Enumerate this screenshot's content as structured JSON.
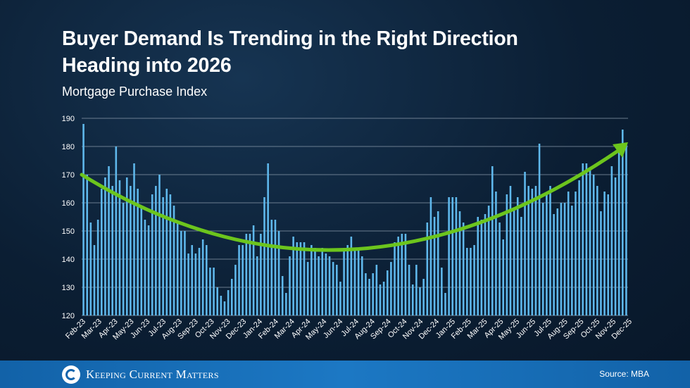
{
  "header": {
    "title_line1": "Buyer Demand Is Trending in the Right Direction",
    "title_line2": "Heading into 2026",
    "subtitle": "Mortgage Purchase Index"
  },
  "footer": {
    "brand": "Keeping Current Matters",
    "source": "Source: MBA"
  },
  "colors": {
    "bar": "#5fb8ec",
    "trend": "#6cc51d",
    "grid": "#8a9aab",
    "footer": "#1565ad"
  },
  "chart_data": {
    "type": "bar",
    "title": "Mortgage Purchase Index",
    "ylim": [
      120,
      190
    ],
    "yticks": [
      120,
      130,
      140,
      150,
      160,
      170,
      180,
      190
    ],
    "grid": true,
    "x_tick_labels": [
      "Feb-23",
      "Mar-23",
      "Apr-23",
      "May-23",
      "Jun-23",
      "Jul-23",
      "Aug-23",
      "Sep-23",
      "Oct-23",
      "Nov-23",
      "Dec-23",
      "Jan-24",
      "Feb-24",
      "Mar-24",
      "Apr-24",
      "May-24",
      "Jun-24",
      "Jul-24",
      "Aug-24",
      "Sep-24",
      "Oct-24",
      "Nov-24",
      "Dec-24",
      "Jan-25",
      "Feb-25",
      "Mar-25",
      "Apr-25",
      "May-25",
      "Jun-25",
      "Jul-25",
      "Aug-25",
      "Sep-25",
      "Oct-25",
      "Nov-25",
      "Dec-25"
    ],
    "values": [
      188,
      170,
      153,
      145,
      154,
      165,
      169,
      173,
      166,
      180,
      168,
      160,
      169,
      166,
      174,
      165,
      158,
      154,
      152,
      163,
      166,
      170,
      162,
      165,
      163,
      159,
      153,
      150,
      150,
      142,
      145,
      142,
      144,
      147,
      145,
      137,
      137,
      130,
      127,
      125,
      129,
      133,
      138,
      145,
      145,
      149,
      149,
      152,
      141,
      149,
      162,
      174,
      154,
      154,
      150,
      134,
      128,
      141,
      148,
      146,
      146,
      146,
      139,
      145,
      144,
      141,
      144,
      142,
      141,
      139,
      138,
      132,
      144,
      145,
      148,
      143,
      144,
      141,
      135,
      133,
      135,
      138,
      131,
      132,
      136,
      139,
      146,
      148,
      149,
      149,
      138,
      131,
      138,
      130,
      133,
      153,
      162,
      155,
      157,
      137,
      128,
      162,
      162,
      162,
      157,
      153,
      144,
      144,
      145,
      155,
      154,
      156,
      159,
      173,
      164,
      153,
      147,
      163,
      166,
      158,
      162,
      155,
      171,
      166,
      165,
      166,
      181,
      160,
      163,
      166,
      156,
      158,
      160,
      160,
      164,
      159,
      164,
      168,
      174,
      174,
      172,
      170,
      166,
      157,
      164,
      163,
      173,
      169,
      181,
      186,
      181
    ],
    "trend_label": ""
  }
}
